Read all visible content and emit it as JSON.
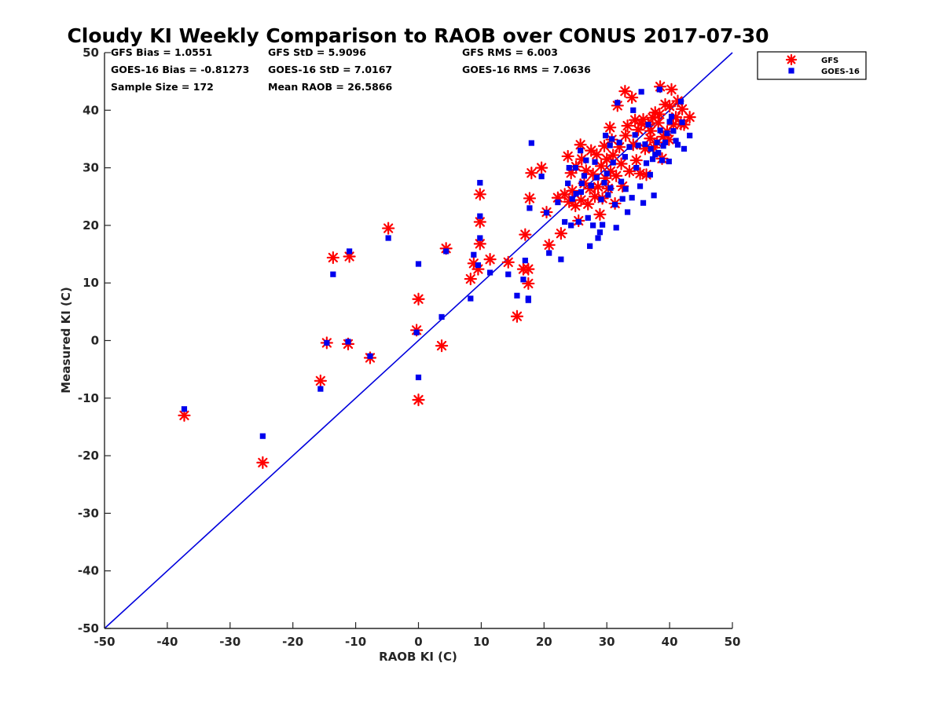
{
  "chart_data": {
    "type": "scatter",
    "title": "Cloudy KI Weekly Comparison to RAOB over CONUS 2017-07-30",
    "xlabel": "RAOB KI (C)",
    "ylabel": "Measured KI (C)",
    "xlim": [
      -50,
      50
    ],
    "ylim": [
      -50,
      50
    ],
    "xticks": [
      "-50",
      "-40",
      "-30",
      "-20",
      "-10",
      "0",
      "10",
      "20",
      "30",
      "40",
      "50"
    ],
    "yticks": [
      "-50",
      "-40",
      "-30",
      "-20",
      "-10",
      "0",
      "10",
      "20",
      "30",
      "40",
      "50"
    ],
    "grid": false,
    "legend_position": "outside-top-right",
    "reference_line": {
      "type": "1:1",
      "color": "#0000dd"
    },
    "stats": [
      "GFS Bias = 1.0551",
      "GFS StD = 5.9096",
      "GFS RMS = 6.003",
      "GOES-16 Bias = -0.81273",
      "GOES-16 StD = 7.0167",
      "GOES-16 RMS = 7.0636",
      "Sample Size = 172",
      "Mean RAOB = 26.5866"
    ],
    "series": [
      {
        "name": "GFS",
        "marker": "asterisk",
        "color": "#ff0000",
        "points": [
          [
            -37.3,
            -13.0
          ],
          [
            -24.8,
            -21.2
          ],
          [
            -15.6,
            -7.0
          ],
          [
            -14.6,
            -0.4
          ],
          [
            -13.6,
            14.4
          ],
          [
            -11.2,
            -0.6
          ],
          [
            -11.0,
            14.6
          ],
          [
            -7.7,
            -3.0
          ],
          [
            -4.8,
            19.5
          ],
          [
            -0.3,
            1.8
          ],
          [
            0.0,
            7.2
          ],
          [
            0.0,
            -10.3
          ],
          [
            3.7,
            -0.9
          ],
          [
            4.4,
            16.0
          ],
          [
            8.3,
            10.7
          ],
          [
            8.8,
            13.4
          ],
          [
            9.5,
            12.4
          ],
          [
            9.8,
            25.4
          ],
          [
            9.8,
            20.6
          ],
          [
            9.8,
            16.8
          ],
          [
            11.4,
            14.1
          ],
          [
            14.3,
            13.6
          ],
          [
            15.7,
            4.2
          ],
          [
            16.7,
            12.4
          ],
          [
            17.0,
            18.4
          ],
          [
            17.5,
            12.4
          ],
          [
            17.5,
            9.9
          ],
          [
            17.7,
            24.7
          ],
          [
            18.0,
            29.1
          ],
          [
            19.6,
            30.0
          ],
          [
            20.4,
            22.3
          ],
          [
            20.8,
            16.6
          ],
          [
            22.2,
            24.8
          ],
          [
            22.7,
            18.6
          ],
          [
            23.3,
            25.4
          ],
          [
            23.8,
            32.0
          ],
          [
            24.0,
            24.1
          ],
          [
            24.3,
            29.1
          ],
          [
            24.5,
            26.0
          ],
          [
            25.0,
            23.4
          ],
          [
            25.1,
            30.2
          ],
          [
            25.5,
            20.8
          ],
          [
            25.8,
            34.0
          ],
          [
            25.9,
            24.4
          ],
          [
            26.0,
            31.5
          ],
          [
            26.4,
            27.3
          ],
          [
            26.7,
            29.5
          ],
          [
            27.0,
            23.7
          ],
          [
            27.3,
            26.4
          ],
          [
            27.5,
            33.0
          ],
          [
            27.8,
            28.9
          ],
          [
            28.1,
            25.0
          ],
          [
            28.4,
            32.3
          ],
          [
            28.6,
            26.7
          ],
          [
            28.9,
            21.9
          ],
          [
            29.1,
            30.3
          ],
          [
            29.3,
            24.7
          ],
          [
            29.6,
            33.8
          ],
          [
            29.8,
            28.2
          ],
          [
            30.0,
            31.5
          ],
          [
            30.2,
            26.4
          ],
          [
            30.5,
            37.0
          ],
          [
            30.6,
            29.4
          ],
          [
            30.8,
            34.9
          ],
          [
            31.0,
            32.2
          ],
          [
            31.3,
            23.8
          ],
          [
            31.5,
            28.6
          ],
          [
            31.7,
            40.8
          ],
          [
            32.0,
            33.6
          ],
          [
            32.3,
            30.7
          ],
          [
            32.5,
            26.8
          ],
          [
            32.9,
            43.3
          ],
          [
            33.0,
            35.6
          ],
          [
            33.3,
            37.3
          ],
          [
            33.6,
            29.4
          ],
          [
            34.0,
            42.2
          ],
          [
            34.2,
            34.0
          ],
          [
            34.5,
            38.3
          ],
          [
            34.7,
            31.3
          ],
          [
            35.0,
            36.6
          ],
          [
            35.3,
            29.0
          ],
          [
            35.5,
            37.7
          ],
          [
            35.8,
            38.4
          ],
          [
            36.1,
            33.3
          ],
          [
            36.3,
            28.8
          ],
          [
            36.6,
            37.5
          ],
          [
            36.9,
            35.1
          ],
          [
            37.0,
            36.4
          ],
          [
            37.3,
            38.7
          ],
          [
            37.5,
            33.5
          ],
          [
            37.7,
            39.6
          ],
          [
            38.0,
            34.4
          ],
          [
            38.2,
            37.8
          ],
          [
            38.4,
            39.3
          ],
          [
            38.5,
            44.1
          ],
          [
            38.8,
            31.6
          ],
          [
            39.0,
            35.4
          ],
          [
            39.3,
            41.0
          ],
          [
            39.6,
            36.3
          ],
          [
            39.9,
            34.9
          ],
          [
            40.0,
            40.7
          ],
          [
            40.3,
            43.6
          ],
          [
            40.6,
            37.5
          ],
          [
            41.0,
            38.8
          ],
          [
            41.3,
            41.6
          ],
          [
            41.8,
            37.6
          ],
          [
            42.0,
            40.2
          ],
          [
            42.3,
            37.5
          ],
          [
            43.2,
            38.8
          ]
        ]
      },
      {
        "name": "GOES-16",
        "marker": "square",
        "color": "#0000ee",
        "points": [
          [
            -37.3,
            -11.9
          ],
          [
            -24.8,
            -16.6
          ],
          [
            -15.6,
            -8.4
          ],
          [
            -14.6,
            -0.4
          ],
          [
            -13.6,
            11.5
          ],
          [
            -11.2,
            -0.2
          ],
          [
            -11.0,
            15.5
          ],
          [
            -7.7,
            -2.7
          ],
          [
            -4.8,
            17.8
          ],
          [
            -0.3,
            1.4
          ],
          [
            0.0,
            13.3
          ],
          [
            0.0,
            -6.4
          ],
          [
            3.7,
            4.1
          ],
          [
            4.4,
            15.5
          ],
          [
            8.3,
            7.3
          ],
          [
            8.8,
            14.9
          ],
          [
            9.5,
            13.1
          ],
          [
            9.8,
            27.4
          ],
          [
            9.8,
            21.6
          ],
          [
            9.8,
            17.8
          ],
          [
            11.4,
            11.8
          ],
          [
            14.3,
            11.5
          ],
          [
            15.7,
            7.8
          ],
          [
            16.7,
            10.6
          ],
          [
            17.0,
            13.9
          ],
          [
            17.5,
            7.3
          ],
          [
            17.5,
            7.0
          ],
          [
            17.7,
            23.0
          ],
          [
            18.0,
            34.3
          ],
          [
            19.6,
            28.5
          ],
          [
            20.4,
            22.2
          ],
          [
            20.8,
            15.2
          ],
          [
            22.2,
            24.0
          ],
          [
            22.7,
            14.1
          ],
          [
            23.3,
            20.6
          ],
          [
            23.8,
            27.3
          ],
          [
            24.0,
            30.0
          ],
          [
            24.3,
            20.0
          ],
          [
            24.5,
            24.6
          ],
          [
            25.0,
            30.0
          ],
          [
            25.1,
            25.5
          ],
          [
            25.5,
            20.6
          ],
          [
            25.8,
            33.0
          ],
          [
            25.9,
            25.8
          ],
          [
            26.0,
            27.3
          ],
          [
            26.4,
            28.6
          ],
          [
            26.7,
            31.3
          ],
          [
            27.0,
            21.3
          ],
          [
            27.3,
            16.4
          ],
          [
            27.5,
            26.9
          ],
          [
            27.8,
            20.0
          ],
          [
            28.1,
            31.0
          ],
          [
            28.4,
            28.3
          ],
          [
            28.6,
            17.8
          ],
          [
            28.9,
            18.8
          ],
          [
            29.1,
            24.5
          ],
          [
            29.3,
            20.1
          ],
          [
            29.6,
            27.4
          ],
          [
            29.8,
            35.6
          ],
          [
            30.0,
            29.0
          ],
          [
            30.2,
            25.3
          ],
          [
            30.5,
            33.9
          ],
          [
            30.6,
            26.5
          ],
          [
            30.8,
            35.0
          ],
          [
            31.0,
            30.9
          ],
          [
            31.3,
            23.6
          ],
          [
            31.5,
            19.6
          ],
          [
            31.7,
            41.3
          ],
          [
            32.0,
            34.4
          ],
          [
            32.3,
            27.6
          ],
          [
            32.5,
            24.6
          ],
          [
            32.9,
            31.9
          ],
          [
            33.0,
            26.3
          ],
          [
            33.3,
            22.3
          ],
          [
            33.6,
            33.6
          ],
          [
            34.0,
            24.8
          ],
          [
            34.2,
            40.0
          ],
          [
            34.5,
            35.7
          ],
          [
            34.7,
            30.0
          ],
          [
            35.0,
            33.9
          ],
          [
            35.3,
            26.8
          ],
          [
            35.5,
            43.2
          ],
          [
            35.8,
            23.9
          ],
          [
            36.1,
            34.1
          ],
          [
            36.3,
            30.8
          ],
          [
            36.6,
            37.5
          ],
          [
            36.9,
            28.8
          ],
          [
            37.0,
            33.3
          ],
          [
            37.3,
            31.5
          ],
          [
            37.5,
            25.2
          ],
          [
            37.7,
            32.3
          ],
          [
            38.0,
            34.4
          ],
          [
            38.2,
            32.6
          ],
          [
            38.4,
            43.6
          ],
          [
            38.5,
            36.5
          ],
          [
            38.8,
            31.3
          ],
          [
            39.0,
            33.8
          ],
          [
            39.3,
            34.4
          ],
          [
            39.6,
            36.0
          ],
          [
            39.9,
            31.1
          ],
          [
            40.0,
            38.0
          ],
          [
            40.3,
            38.9
          ],
          [
            40.6,
            36.4
          ],
          [
            41.0,
            34.7
          ],
          [
            41.3,
            34.0
          ],
          [
            41.8,
            41.5
          ],
          [
            42.0,
            37.9
          ],
          [
            42.3,
            33.3
          ],
          [
            43.2,
            35.6
          ]
        ]
      }
    ]
  }
}
